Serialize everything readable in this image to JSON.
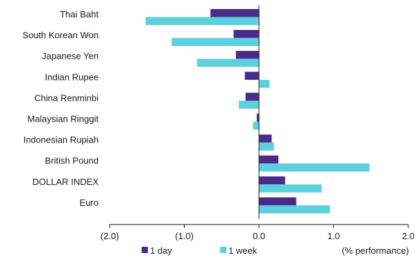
{
  "chart_data": {
    "type": "bar",
    "orientation": "horizontal",
    "categories": [
      "Thai Baht",
      "South Korean Won",
      "Japanese Yen",
      "Indian Rupee",
      "China Renminbi",
      "Malaysian Ringgit",
      "Indonesian Rupiah",
      "British Pound",
      "DOLLAR INDEX",
      "Euro"
    ],
    "series": [
      {
        "name": "1 day",
        "color": "#4a2a8a",
        "values": [
          -0.65,
          -0.34,
          -0.31,
          -0.19,
          -0.18,
          -0.03,
          0.17,
          0.26,
          0.35,
          0.5
        ]
      },
      {
        "name": "1 week",
        "color": "#5bd0de",
        "values": [
          -1.52,
          -1.17,
          -0.83,
          0.14,
          -0.27,
          -0.08,
          0.2,
          1.48,
          0.84,
          0.95
        ]
      }
    ],
    "xlim": [
      -2.0,
      2.0
    ],
    "xticks": [
      -2.0,
      -1.0,
      0.0,
      1.0,
      2.0
    ],
    "xtick_labels": [
      "(2.0)",
      "(1.0)",
      "0.0",
      "1.0",
      "2.0"
    ],
    "xlabel": "(% performance)",
    "legend_position": "bottom",
    "grid": false
  }
}
